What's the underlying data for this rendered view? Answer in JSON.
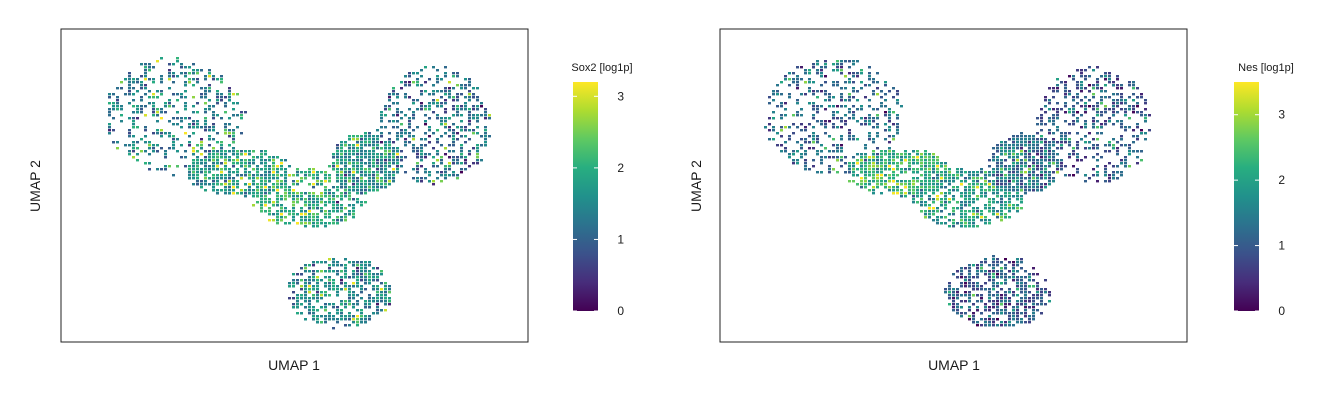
{
  "chart_data": [
    {
      "type": "scatter",
      "title": "",
      "xlabel": "UMAP 1",
      "ylabel": "UMAP 2",
      "colorbar": {
        "label": "Sox2 [log1p]",
        "min": 0,
        "max": 3.2,
        "ticks": [
          0,
          1,
          2,
          3
        ],
        "colormap": "viridis"
      },
      "grid": false,
      "axis_ticks_shown": false,
      "xlim": [
        0,
        100
      ],
      "ylim": [
        0,
        100
      ],
      "n_points": 3000,
      "clusters": [
        {
          "cx": 22,
          "cy": 74,
          "rx": 16,
          "ry": 20,
          "mean_expr": 1.4
        },
        {
          "cx": 37,
          "cy": 55,
          "rx": 12,
          "ry": 8,
          "mean_expr": 1.7
        },
        {
          "cx": 53,
          "cy": 46,
          "rx": 13,
          "ry": 10,
          "mean_expr": 1.9
        },
        {
          "cx": 66,
          "cy": 58,
          "rx": 8,
          "ry": 10,
          "mean_expr": 1.6
        },
        {
          "cx": 82,
          "cy": 71,
          "rx": 13,
          "ry": 20,
          "mean_expr": 1.2
        },
        {
          "cx": 60,
          "cy": 14,
          "rx": 12,
          "ry": 12,
          "mean_expr": 1.5
        }
      ]
    },
    {
      "type": "scatter",
      "title": "",
      "xlabel": "UMAP 1",
      "ylabel": "UMAP 2",
      "colorbar": {
        "label": "Nes [log1p]",
        "min": 0,
        "max": 3.5,
        "ticks": [
          0,
          1,
          2,
          3
        ],
        "colormap": "viridis"
      },
      "grid": false,
      "axis_ticks_shown": false,
      "xlim": [
        0,
        100
      ],
      "ylim": [
        0,
        100
      ],
      "n_points": 3000,
      "clusters": [
        {
          "cx": 22,
          "cy": 74,
          "rx": 16,
          "ry": 20,
          "mean_expr": 1.2
        },
        {
          "cx": 37,
          "cy": 55,
          "rx": 12,
          "ry": 8,
          "mean_expr": 2.3
        },
        {
          "cx": 53,
          "cy": 46,
          "rx": 13,
          "ry": 10,
          "mean_expr": 1.9
        },
        {
          "cx": 66,
          "cy": 58,
          "rx": 8,
          "ry": 10,
          "mean_expr": 1.3
        },
        {
          "cx": 82,
          "cy": 71,
          "rx": 13,
          "ry": 20,
          "mean_expr": 1.0
        },
        {
          "cx": 60,
          "cy": 14,
          "rx": 12,
          "ry": 12,
          "mean_expr": 1.0
        }
      ]
    }
  ]
}
